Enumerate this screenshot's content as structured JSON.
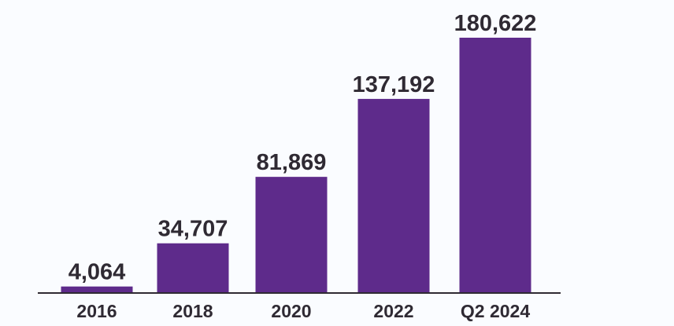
{
  "chart_data": {
    "type": "bar",
    "categories": [
      "2016",
      "2018",
      "2020",
      "2022",
      "Q2 2024"
    ],
    "values": [
      4064,
      34707,
      81869,
      137192,
      180622
    ],
    "value_labels": [
      "4,064",
      "34,707",
      "81,869",
      "137,192",
      "180,622"
    ],
    "title": "",
    "xlabel": "",
    "ylabel": "",
    "ylim": [
      0,
      180622
    ],
    "grid": false,
    "legend": "none",
    "bar_color": "#5e2b8b",
    "axis_color": "#2f2a33",
    "text_color": "#2f2a33",
    "background_color": "#fafcff"
  }
}
